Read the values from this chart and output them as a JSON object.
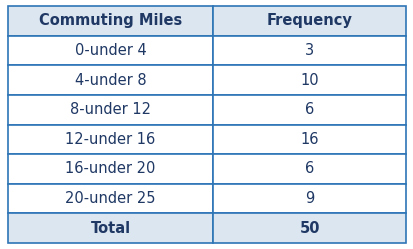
{
  "col1_header": "Commuting Miles",
  "col2_header": "Frequency",
  "rows": [
    [
      "0-under 4",
      "3"
    ],
    [
      "4-under 8",
      "10"
    ],
    [
      "8-under 12",
      "6"
    ],
    [
      "12-under 16",
      "16"
    ],
    [
      "16-under 20",
      "6"
    ],
    [
      "20-under 25",
      "9"
    ]
  ],
  "total_label": "Total",
  "total_value": "50",
  "header_bg": "#dce6f1",
  "row_bg": "#ffffff",
  "total_bg": "#dce6f1",
  "border_color": "#2e75b6",
  "header_text_color": "#1f3864",
  "data_text_color": "#1f3864",
  "header_fontsize": 10.5,
  "data_fontsize": 10.5,
  "total_fontsize": 10.5,
  "fig_width": 4.14,
  "fig_height": 2.49,
  "dpi": 100
}
